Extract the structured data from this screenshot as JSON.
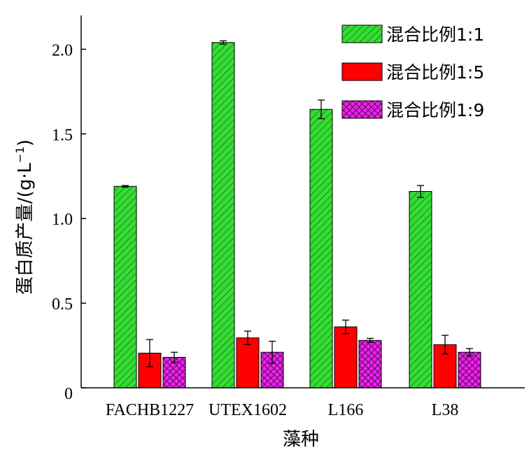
{
  "chart_data": {
    "type": "bar",
    "categories": [
      "FACHB1227",
      "UTEX1602",
      "L166",
      "L38"
    ],
    "series": [
      {
        "name": "混合比例1:1",
        "values": [
          1.19,
          2.04,
          1.645,
          1.16
        ],
        "errors": [
          0.005,
          0.01,
          0.055,
          0.035
        ],
        "color": "#33dd33",
        "pattern": "diagonal-hatch"
      },
      {
        "name": "混合比例1:5",
        "values": [
          0.205,
          0.295,
          0.36,
          0.255
        ],
        "errors": [
          0.08,
          0.04,
          0.04,
          0.055
        ],
        "color": "#ff0000",
        "pattern": "solid"
      },
      {
        "name": "混合比例1:9",
        "values": [
          0.18,
          0.21,
          0.28,
          0.21
        ],
        "errors": [
          0.03,
          0.065,
          0.012,
          0.022
        ],
        "color": "#ee22ee",
        "pattern": "crosshatch"
      }
    ],
    "xlabel": "藻种",
    "ylabel_main": "蛋白质产量/(g·L",
    "ylabel_sup": "−1",
    "ylabel_close": ")",
    "ylim": [
      0,
      2.2
    ],
    "yticks": [
      0,
      0.5,
      1.0,
      1.5,
      2.0
    ],
    "ytick_labels": [
      "0",
      "0.5",
      "1.0",
      "1.5",
      "2.0"
    ],
    "legend_position": "top-right",
    "grid": false
  }
}
